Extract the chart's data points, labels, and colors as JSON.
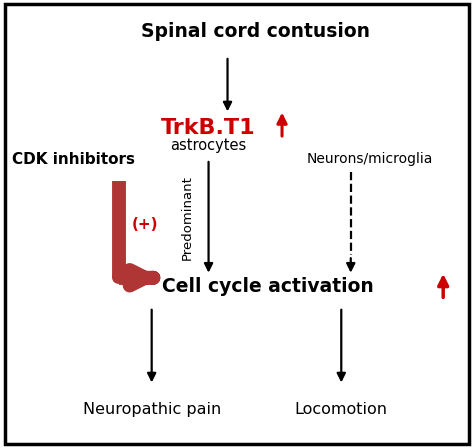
{
  "bg_color": "#ffffff",
  "border_color": "#000000",
  "title": "Spinal cord contusion",
  "trkb_label": "TrkB.T1",
  "trkb_color": "#cc0000",
  "astrocytes_label": "astrocytes",
  "neurons_label": "Neurons/microglia",
  "cdk_label": "CDK inhibitors",
  "plus_label": "(+)",
  "plus_color": "#cc0000",
  "predominant_label": "Predominant",
  "cell_cycle_label": "Cell cycle activation",
  "neuro_pain_label": "Neuropathic pain",
  "locomotion_label": "Locomotion",
  "black": "#000000",
  "red_arrow": "#b03535",
  "red_up": "#cc0000",
  "figsize": [
    4.74,
    4.48
  ],
  "dpi": 100
}
